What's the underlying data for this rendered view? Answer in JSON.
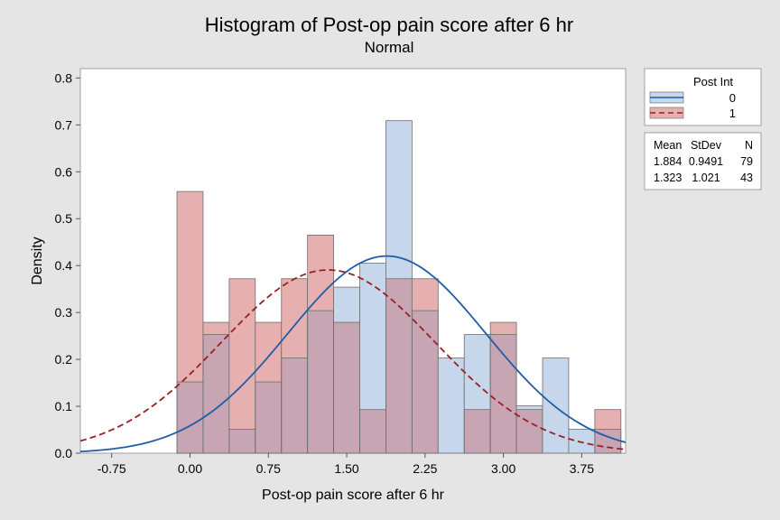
{
  "chart_data": {
    "type": "histogram",
    "title": "Histogram of Post-op pain score after 6 hr",
    "subtitle": "Normal",
    "xlabel": "Post-op pain score after 6 hr",
    "ylabel": "Density",
    "xlim": [
      -1.05,
      4.17
    ],
    "ylim": [
      0,
      0.82
    ],
    "x_ticks": [
      "-0.75",
      "0.00",
      "0.75",
      "1.50",
      "2.25",
      "3.00",
      "3.75"
    ],
    "x_tick_values": [
      -0.75,
      0.0,
      0.75,
      1.5,
      2.25,
      3.0,
      3.75
    ],
    "y_ticks": [
      "0.0",
      "0.1",
      "0.2",
      "0.3",
      "0.4",
      "0.5",
      "0.6",
      "0.7",
      "0.8"
    ],
    "y_tick_values": [
      0.0,
      0.1,
      0.2,
      0.3,
      0.4,
      0.5,
      0.6,
      0.7,
      0.8
    ],
    "bin_start": -0.125,
    "bin_width": 0.25,
    "grid": false,
    "series": [
      {
        "name": "0",
        "fill": "#c6d7ec",
        "line_color": "#1f5da8",
        "line_style": "solid",
        "mean": 1.884,
        "stdev": 0.9491,
        "n": 79,
        "density": [
          0.152,
          0.253,
          0.051,
          0.152,
          0.203,
          0.304,
          0.354,
          0.405,
          0.709,
          0.304,
          0.203,
          0.253,
          0.253,
          0.101,
          0.203,
          0.051,
          0.051
        ]
      },
      {
        "name": "1",
        "fill": "#e6b0b0",
        "line_color": "#9c1f24",
        "line_style": "dashed",
        "mean": 1.323,
        "stdev": 1.021,
        "n": 43,
        "density": [
          0.558,
          0.279,
          0.372,
          0.279,
          0.372,
          0.465,
          0.279,
          0.093,
          0.372,
          0.372,
          0.0,
          0.093,
          0.279,
          0.093,
          0.0,
          0.0,
          0.093
        ]
      }
    ],
    "overlap_fill": "#c8a5b2",
    "legend": {
      "title": "Post Int",
      "labels": [
        "0",
        "1"
      ]
    },
    "stats_table": {
      "headers": [
        "Mean",
        "StDev",
        "N"
      ],
      "rows": [
        [
          "1.884",
          "0.9491",
          "79"
        ],
        [
          "1.323",
          "1.021",
          "43"
        ]
      ]
    }
  }
}
